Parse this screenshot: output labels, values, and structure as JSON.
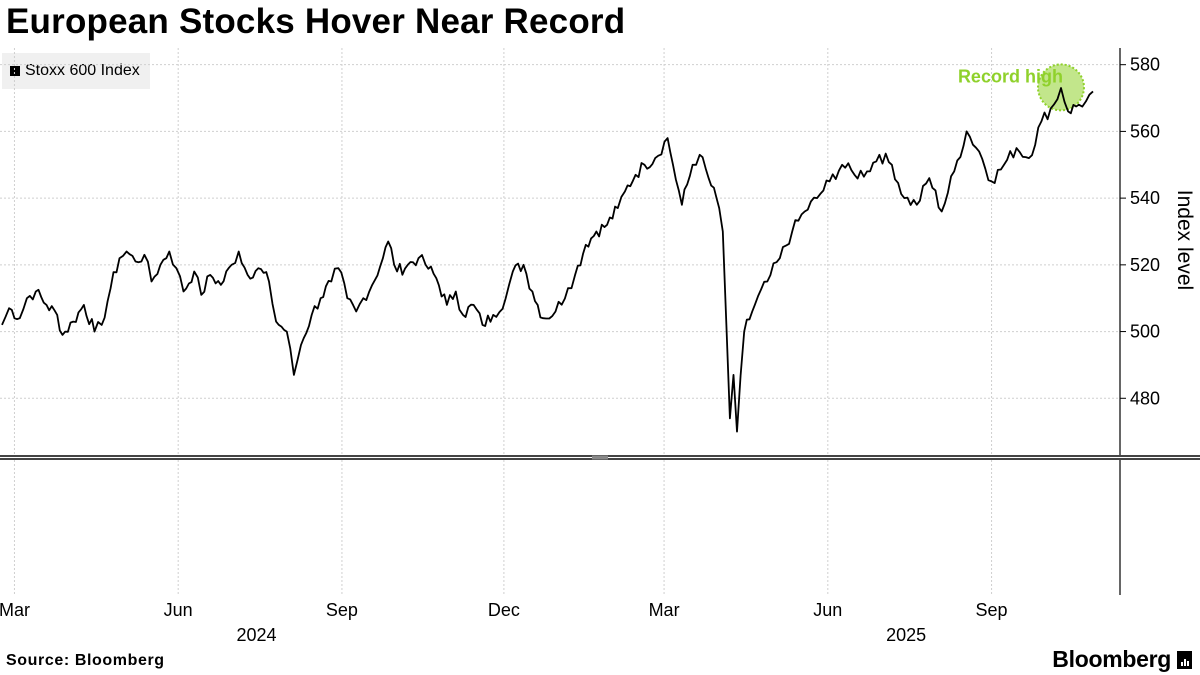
{
  "title": "European Stocks Hover Near Record",
  "legend": {
    "label": "Stoxx 600 Index",
    "color": "#000000"
  },
  "source": "Source: Bloomberg",
  "brand": "Bloomberg",
  "brand_icon": "bloomberg-terminal-icon",
  "chart_data": {
    "type": "line",
    "title": "European Stocks Hover Near Record",
    "ylabel": "Index level",
    "ylim": [
      463,
      585
    ],
    "y_ticks": [
      480,
      500,
      520,
      540,
      560,
      580
    ],
    "x_range": [
      "2024-02-23",
      "2025-10-28"
    ],
    "x_ticks": [
      {
        "date": "2024-03-01",
        "label": "Mar"
      },
      {
        "date": "2024-06-01",
        "label": "Jun"
      },
      {
        "date": "2024-09-01",
        "label": "Sep"
      },
      {
        "date": "2024-12-01",
        "label": "Dec"
      },
      {
        "date": "2025-03-01",
        "label": "Mar"
      },
      {
        "date": "2025-06-01",
        "label": "Jun"
      },
      {
        "date": "2025-09-01",
        "label": "Sep"
      }
    ],
    "year_labels": [
      {
        "date": "2024-07-15",
        "label": "2024"
      },
      {
        "date": "2025-07-15",
        "label": "2025"
      }
    ],
    "grid": true,
    "legend_position": "top-left",
    "annotation": {
      "text": "Record high",
      "date": "2025-10-10",
      "value": 572,
      "color": "#8fd12b"
    },
    "series": [
      {
        "name": "Stoxx 600 Index",
        "color": "#000000",
        "points": [
          [
            "2024-02-23",
            502
          ],
          [
            "2024-02-27",
            507
          ],
          [
            "2024-03-04",
            504
          ],
          [
            "2024-03-08",
            510
          ],
          [
            "2024-03-13",
            512
          ],
          [
            "2024-03-19",
            508
          ],
          [
            "2024-03-25",
            505
          ],
          [
            "2024-03-28",
            499
          ],
          [
            "2024-04-03",
            503
          ],
          [
            "2024-04-09",
            508
          ],
          [
            "2024-04-15",
            500
          ],
          [
            "2024-04-19",
            502
          ],
          [
            "2024-04-24",
            513
          ],
          [
            "2024-04-29",
            522
          ],
          [
            "2024-05-03",
            524
          ],
          [
            "2024-05-08",
            521
          ],
          [
            "2024-05-13",
            523
          ],
          [
            "2024-05-17",
            515
          ],
          [
            "2024-05-22",
            520
          ],
          [
            "2024-05-27",
            524
          ],
          [
            "2024-05-31",
            519
          ],
          [
            "2024-06-04",
            512
          ],
          [
            "2024-06-10",
            518
          ],
          [
            "2024-06-14",
            511
          ],
          [
            "2024-06-19",
            517
          ],
          [
            "2024-06-25",
            514
          ],
          [
            "2024-07-01",
            520
          ],
          [
            "2024-07-05",
            524
          ],
          [
            "2024-07-10",
            517
          ],
          [
            "2024-07-16",
            519
          ],
          [
            "2024-07-22",
            515
          ],
          [
            "2024-07-26",
            503
          ],
          [
            "2024-08-01",
            500
          ],
          [
            "2024-08-05",
            487
          ],
          [
            "2024-08-09",
            496
          ],
          [
            "2024-08-15",
            505
          ],
          [
            "2024-08-20",
            510
          ],
          [
            "2024-08-26",
            515
          ],
          [
            "2024-08-30",
            519
          ],
          [
            "2024-09-04",
            510
          ],
          [
            "2024-09-09",
            506
          ],
          [
            "2024-09-13",
            510
          ],
          [
            "2024-09-18",
            514
          ],
          [
            "2024-09-24",
            522
          ],
          [
            "2024-09-27",
            527
          ],
          [
            "2024-10-02",
            518
          ],
          [
            "2024-10-08",
            520
          ],
          [
            "2024-10-14",
            522
          ],
          [
            "2024-10-18",
            520
          ],
          [
            "2024-10-24",
            516
          ],
          [
            "2024-10-30",
            508
          ],
          [
            "2024-11-04",
            512
          ],
          [
            "2024-11-08",
            505
          ],
          [
            "2024-11-14",
            508
          ],
          [
            "2024-11-19",
            502
          ],
          [
            "2024-11-25",
            505
          ],
          [
            "2024-12-02",
            510
          ],
          [
            "2024-12-06",
            518
          ],
          [
            "2024-12-12",
            520
          ],
          [
            "2024-12-17",
            512
          ],
          [
            "2024-12-23",
            504
          ],
          [
            "2024-12-30",
            506
          ],
          [
            "2025-01-06",
            513
          ],
          [
            "2025-01-10",
            517
          ],
          [
            "2025-01-16",
            526
          ],
          [
            "2025-01-22",
            530
          ],
          [
            "2025-01-28",
            532
          ],
          [
            "2025-02-03",
            537
          ],
          [
            "2025-02-07",
            542
          ],
          [
            "2025-02-13",
            547
          ],
          [
            "2025-02-18",
            550
          ],
          [
            "2025-02-24",
            552
          ],
          [
            "2025-03-03",
            558
          ],
          [
            "2025-03-06",
            550
          ],
          [
            "2025-03-11",
            538
          ],
          [
            "2025-03-17",
            550
          ],
          [
            "2025-03-21",
            553
          ],
          [
            "2025-03-26",
            546
          ],
          [
            "2025-04-01",
            537
          ],
          [
            "2025-04-03",
            530
          ],
          [
            "2025-04-07",
            474
          ],
          [
            "2025-04-09",
            487
          ],
          [
            "2025-04-11",
            470
          ],
          [
            "2025-04-15",
            500
          ],
          [
            "2025-04-21",
            508
          ],
          [
            "2025-04-28",
            515
          ],
          [
            "2025-05-05",
            522
          ],
          [
            "2025-05-12",
            530
          ],
          [
            "2025-05-19",
            536
          ],
          [
            "2025-05-26",
            540
          ],
          [
            "2025-06-02",
            545
          ],
          [
            "2025-06-09",
            550
          ],
          [
            "2025-06-16",
            547
          ],
          [
            "2025-06-23",
            548
          ],
          [
            "2025-06-30",
            553
          ],
          [
            "2025-07-07",
            550
          ],
          [
            "2025-07-14",
            540
          ],
          [
            "2025-07-21",
            538
          ],
          [
            "2025-07-28",
            546
          ],
          [
            "2025-08-04",
            536
          ],
          [
            "2025-08-11",
            548
          ],
          [
            "2025-08-18",
            560
          ],
          [
            "2025-08-25",
            554
          ],
          [
            "2025-09-01",
            545
          ],
          [
            "2025-09-08",
            550
          ],
          [
            "2025-09-15",
            555
          ],
          [
            "2025-09-22",
            552
          ],
          [
            "2025-09-29",
            563
          ],
          [
            "2025-10-06",
            568
          ],
          [
            "2025-10-10",
            573
          ],
          [
            "2025-10-14",
            566
          ],
          [
            "2025-10-20",
            568
          ],
          [
            "2025-10-24",
            569
          ],
          [
            "2025-10-28",
            572
          ]
        ]
      }
    ]
  }
}
